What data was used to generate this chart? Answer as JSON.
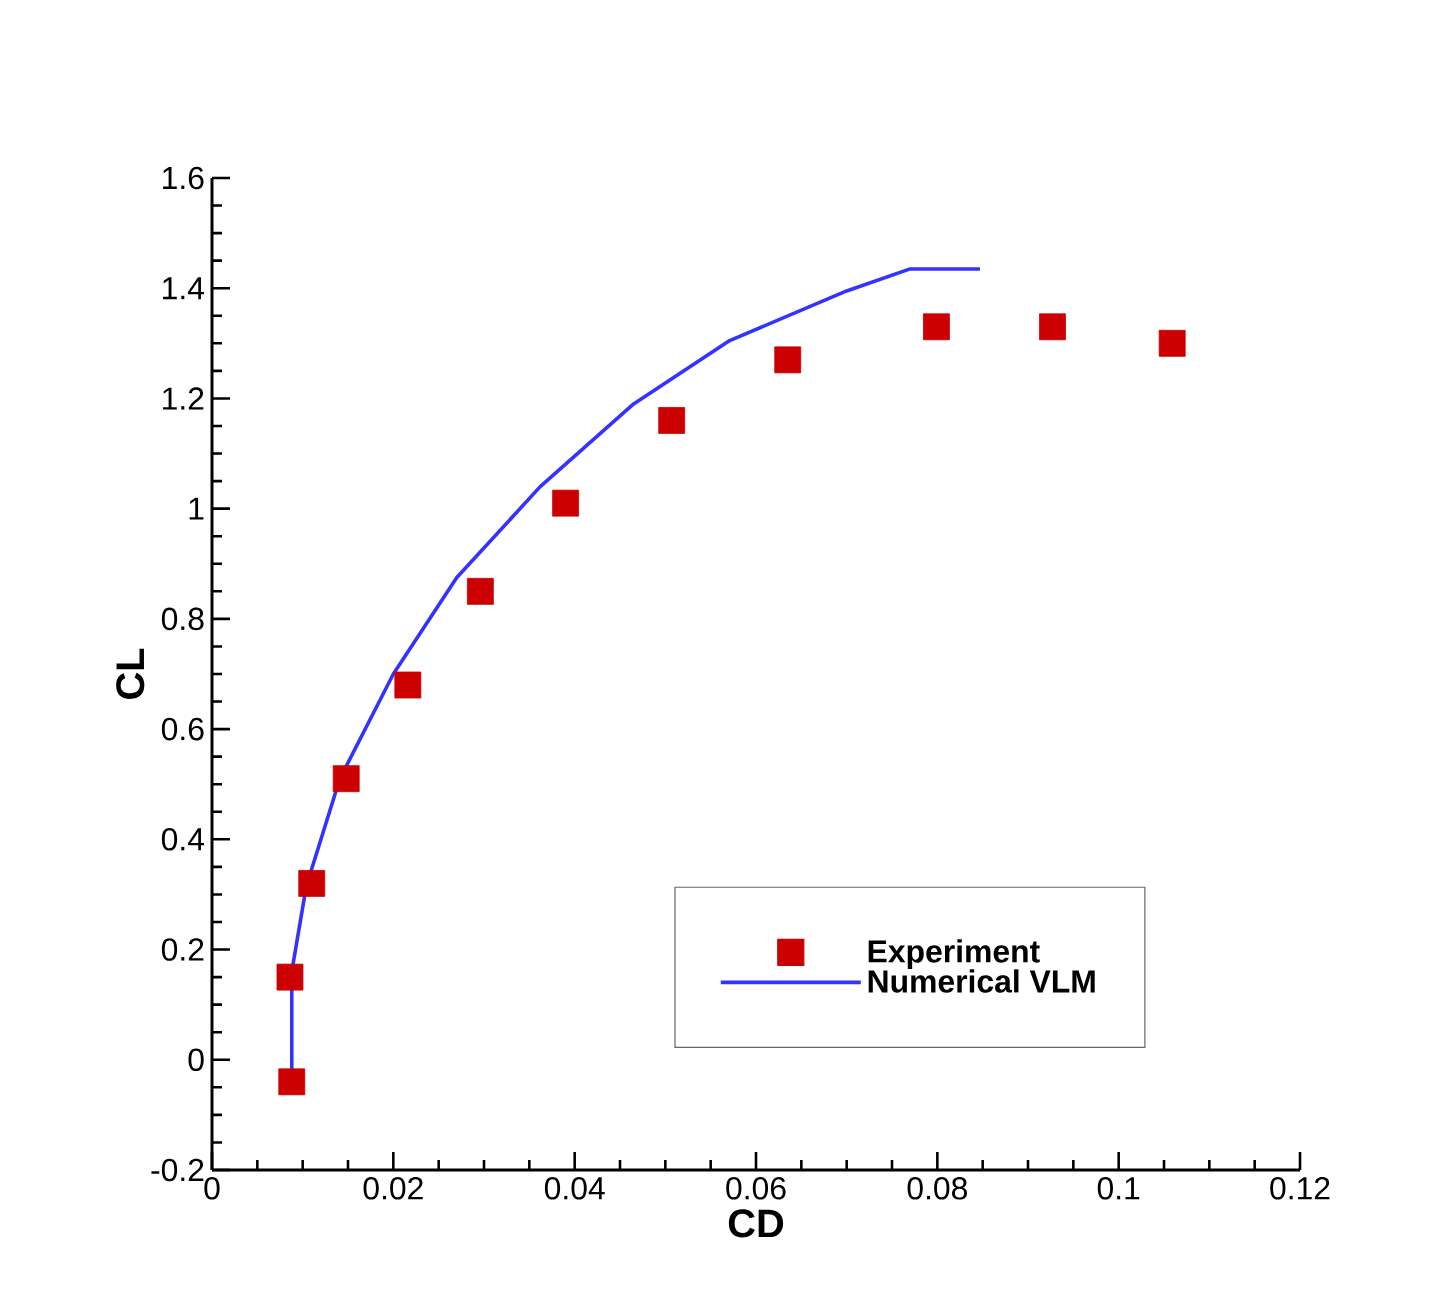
{
  "chart_data": {
    "type": "scatter",
    "xlabel": "CD",
    "ylabel": "CL",
    "xlim": [
      0,
      0.12
    ],
    "ylim": [
      -0.2,
      1.6
    ],
    "xticks": [
      0,
      0.02,
      0.04,
      0.06,
      0.08,
      0.1,
      0.12
    ],
    "yticks": [
      -0.2,
      0,
      0.2,
      0.4,
      0.6,
      0.8,
      1,
      1.2,
      1.4,
      1.6
    ],
    "grid": false,
    "legend": "bottom right",
    "series": [
      {
        "name": "Experiment",
        "marker": "square",
        "color": "#cc0000",
        "x": [
          0.0088,
          0.0086,
          0.011,
          0.0148,
          0.0216,
          0.0296,
          0.039,
          0.0507,
          0.0635,
          0.0799,
          0.0927,
          0.1059
        ],
        "values": [
          -0.04,
          0.15,
          0.32,
          0.51,
          0.68,
          0.85,
          1.01,
          1.16,
          1.27,
          1.33,
          1.33,
          1.3
        ]
      },
      {
        "name": "Numerical VLM",
        "type": "line",
        "marker": "none",
        "color": "#3333ff",
        "x": [
          0.0088,
          0.0088,
          0.0104,
          0.0141,
          0.02,
          0.027,
          0.0362,
          0.0465,
          0.0571,
          0.07,
          0.077,
          0.0847
        ],
        "values": [
          -0.02,
          0.16,
          0.315,
          0.51,
          0.7,
          0.875,
          1.04,
          1.19,
          1.305,
          1.395,
          1.435,
          1.435
        ]
      }
    ]
  }
}
